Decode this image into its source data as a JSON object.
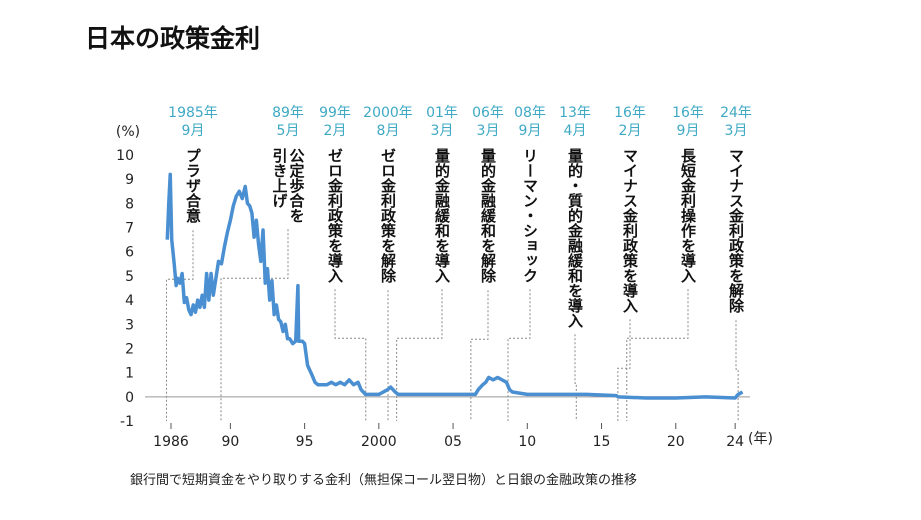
{
  "chart_data": {
    "type": "line",
    "title": "日本の政策金利",
    "y_unit": "(%)",
    "x_unit": "(年)",
    "footnote": "銀行間で短期資金をやり取りする金利（無担保コール翌日物）と日銀の金融政策の推移",
    "xlim": [
      1984.25,
      2025
    ],
    "ylim": [
      -1,
      10
    ],
    "yticks": [
      -1,
      0,
      1,
      2,
      3,
      4,
      5,
      6,
      7,
      8,
      9,
      10
    ],
    "xticks": [
      {
        "value": 1986,
        "label": "1986"
      },
      {
        "value": 1990,
        "label": "90"
      },
      {
        "value": 1995,
        "label": "95"
      },
      {
        "value": 2000,
        "label": "2000"
      },
      {
        "value": 2005,
        "label": "05"
      },
      {
        "value": 2010,
        "label": "10"
      },
      {
        "value": 2015,
        "label": "15"
      },
      {
        "value": 2020,
        "label": "20"
      },
      {
        "value": 2024,
        "label": "24"
      }
    ],
    "series": [
      {
        "color": "#4a8fd1",
        "x": [
          1985.75,
          1985.85,
          1985.95,
          1986.05,
          1986.2,
          1986.35,
          1986.45,
          1986.6,
          1986.75,
          1986.9,
          1987.05,
          1987.2,
          1987.35,
          1987.5,
          1987.65,
          1987.8,
          1987.95,
          1988.1,
          1988.25,
          1988.4,
          1988.55,
          1988.7,
          1988.85,
          1989.0,
          1989.2,
          1989.4,
          1989.6,
          1989.8,
          1990.0,
          1990.2,
          1990.4,
          1990.6,
          1990.8,
          1991.0,
          1991.15,
          1991.3,
          1991.45,
          1991.6,
          1991.75,
          1991.9,
          1992.05,
          1992.2,
          1992.35,
          1992.5,
          1992.65,
          1992.8,
          1992.95,
          1993.1,
          1993.25,
          1993.4,
          1993.55,
          1993.7,
          1993.85,
          1994.0,
          1994.2,
          1994.4,
          1994.55,
          1994.6,
          1994.7,
          1994.85,
          1995.0,
          1995.2,
          1995.35,
          1995.5,
          1995.7,
          1995.9,
          1996.2,
          1996.5,
          1996.8,
          1997.1,
          1997.4,
          1997.7,
          1998.0,
          1998.3,
          1998.6,
          1998.8,
          1999.1,
          1999.5,
          2000.0,
          2000.6,
          2000.8,
          2001.1,
          2001.3,
          2002,
          2004,
          2006.2,
          2006.5,
          2006.7,
          2007.0,
          2007.2,
          2007.4,
          2007.7,
          2008.0,
          2008.3,
          2008.6,
          2008.8,
          2009.0,
          2010,
          2012,
          2014,
          2016.0,
          2016.1,
          2018,
          2020,
          2022,
          2024.0,
          2024.2,
          2024.5
        ],
        "values": [
          6.5,
          8.0,
          9.2,
          6.5,
          5.6,
          4.6,
          4.9,
          4.7,
          5.1,
          3.9,
          4.1,
          3.6,
          3.4,
          3.8,
          3.5,
          4.0,
          3.7,
          4.2,
          3.7,
          5.1,
          4.0,
          5.1,
          4.2,
          4.8,
          5.6,
          5.5,
          6.2,
          6.8,
          7.3,
          7.9,
          8.3,
          8.5,
          8.2,
          8.7,
          8.0,
          7.9,
          7.6,
          6.6,
          7.3,
          6.3,
          5.6,
          6.9,
          4.7,
          5.3,
          4.0,
          4.8,
          3.4,
          3.8,
          3.2,
          3.1,
          2.7,
          3.0,
          2.4,
          2.4,
          2.2,
          2.3,
          4.6,
          2.3,
          2.3,
          2.3,
          2.2,
          1.3,
          1.1,
          0.9,
          0.6,
          0.5,
          0.5,
          0.5,
          0.6,
          0.5,
          0.6,
          0.5,
          0.7,
          0.5,
          0.6,
          0.3,
          0.1,
          0.1,
          0.1,
          0.3,
          0.4,
          0.2,
          0.1,
          0.1,
          0.1,
          0.1,
          0.1,
          0.3,
          0.5,
          0.6,
          0.8,
          0.7,
          0.8,
          0.7,
          0.6,
          0.3,
          0.2,
          0.1,
          0.1,
          0.1,
          0.05,
          0.0,
          -0.05,
          -0.05,
          0.0,
          -0.05,
          0.1,
          0.2
        ]
      }
    ],
    "events": [
      {
        "x": 1985.7,
        "date": [
          "1985年",
          "9月"
        ],
        "text": [
          "プラザ合意"
        ]
      },
      {
        "x": 1989.37,
        "date": [
          "89年",
          "5月"
        ],
        "text": [
          "公定歩合を",
          "引き上げ"
        ]
      },
      {
        "x": 1999.12,
        "date": [
          "99年",
          "2月"
        ],
        "text": [
          "ゼロ金利政策を導入"
        ]
      },
      {
        "x": 2000.62,
        "date": [
          "2000年",
          "8月"
        ],
        "text": [
          "ゼロ金利政策を解除"
        ]
      },
      {
        "x": 2001.2,
        "date": [
          "01年",
          "3月"
        ],
        "text": [
          "量的金融緩和を導入"
        ]
      },
      {
        "x": 2006.2,
        "date": [
          "06年",
          "3月"
        ],
        "text": [
          "量的金融緩和を解除"
        ]
      },
      {
        "x": 2008.7,
        "date": [
          "08年",
          "9月"
        ],
        "text": [
          "リーマン・ショック"
        ]
      },
      {
        "x": 2013.3,
        "date": [
          "13年",
          "4月"
        ],
        "text": [
          "量的・質的金融緩和を導入"
        ]
      },
      {
        "x": 2016.1,
        "date": [
          "16年",
          "2月"
        ],
        "text": [
          "マイナス金利政策を導入"
        ]
      },
      {
        "x": 2016.7,
        "date": [
          "16年",
          "9月"
        ],
        "text": [
          "長短金利操作を導入"
        ]
      },
      {
        "x": 2024.2,
        "date": [
          "24年",
          "3月"
        ],
        "text": [
          "マイナス金利政策を解除"
        ]
      }
    ]
  }
}
